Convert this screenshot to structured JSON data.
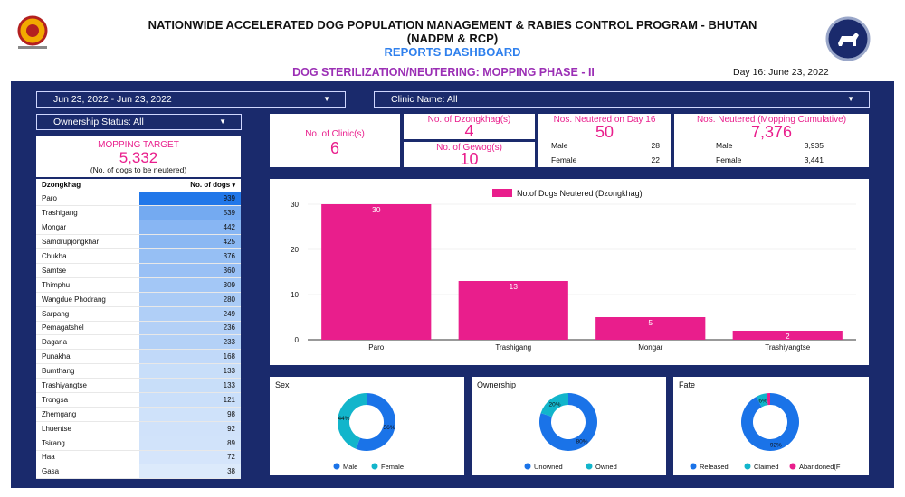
{
  "header": {
    "title_line1": "NATIONWIDE ACCELERATED DOG POPULATION MANAGEMENT & RABIES CONTROL PROGRAM - BHUTAN",
    "title_line2": "(NADPM & RCP)",
    "title_line3": "REPORTS DASHBOARD",
    "subtitle": "DOG STERILIZATION/NEUTERING: MOPPING PHASE - II",
    "day": "Day 16: June 23, 2022"
  },
  "filters": {
    "date_range": "Jun 23, 2022 - Jun 23, 2022",
    "clinic": "Clinic Name: All",
    "ownership": "Ownership Status: All"
  },
  "target": {
    "label": "MOPPING TARGET",
    "value": "5,332",
    "note": "(No. of dogs to be neutered)"
  },
  "kpis": {
    "clinics_label": "No. of Clinic(s)",
    "clinics_value": "6",
    "dzongkhag_label": "No. of Dzongkhag(s)",
    "dzongkhag_value": "4",
    "gewog_label": "No. of Gewog(s)",
    "gewog_value": "10",
    "day_label": "Nos. Neutered on Day 16",
    "day_value": "50",
    "day_male_label": "Male",
    "day_male": "28",
    "day_female_label": "Female",
    "day_female": "22",
    "cum_label": "Nos. Neutered (Mopping Cumulative)",
    "cum_value": "7,376",
    "cum_male_label": "Male",
    "cum_male": "3,935",
    "cum_female_label": "Female",
    "cum_female": "3,441"
  },
  "table": {
    "col1": "Dzongkhag",
    "col2": "No. of dogs",
    "sort_icon": "sort-desc-icon",
    "max": 939,
    "rows": [
      {
        "name": "Paro",
        "value": 939
      },
      {
        "name": "Trashigang",
        "value": 539
      },
      {
        "name": "Mongar",
        "value": 442
      },
      {
        "name": "Samdrupjongkhar",
        "value": 425
      },
      {
        "name": "Chukha",
        "value": 376
      },
      {
        "name": "Samtse",
        "value": 360
      },
      {
        "name": "Thimphu",
        "value": 309
      },
      {
        "name": "Wangdue Phodrang",
        "value": 280
      },
      {
        "name": "Sarpang",
        "value": 249
      },
      {
        "name": "Pemagatshel",
        "value": 236
      },
      {
        "name": "Dagana",
        "value": 233
      },
      {
        "name": "Punakha",
        "value": 168
      },
      {
        "name": "Bumthang",
        "value": 133
      },
      {
        "name": "Trashiyangtse",
        "value": 133
      },
      {
        "name": "Trongsa",
        "value": 121
      },
      {
        "name": "Zhemgang",
        "value": 98
      },
      {
        "name": "Lhuentse",
        "value": 92
      },
      {
        "name": "Tsirang",
        "value": 89
      },
      {
        "name": "Haa",
        "value": 72
      },
      {
        "name": "Gasa",
        "value": 38
      }
    ]
  },
  "colors": {
    "accent": "#e91e8c",
    "navy": "#1a2a6c",
    "blue": "#1a73e8",
    "teal": "#12b5cb"
  },
  "chart_data": [
    {
      "type": "bar",
      "legend": "No.of Dogs Neutered (Dzongkhag)",
      "categories": [
        "Paro",
        "Trashigang",
        "Mongar",
        "Trashiyangtse"
      ],
      "series": [
        {
          "name": "No.of Dogs Neutered (Dzongkhag)",
          "values": [
            30,
            13,
            5,
            2
          ]
        }
      ],
      "yticks": [
        0,
        10,
        20,
        30
      ],
      "ylim": [
        0,
        30
      ],
      "color": "#e91e8c"
    },
    {
      "type": "pie",
      "title": "Sex",
      "labels": [
        "Male",
        "Female"
      ],
      "values": [
        56,
        44
      ],
      "value_labels": [
        "56%",
        "44%"
      ],
      "colors": [
        "#1a73e8",
        "#12b5cb"
      ]
    },
    {
      "type": "pie",
      "title": "Ownership",
      "labels": [
        "Unowned",
        "Owned"
      ],
      "values": [
        80,
        20
      ],
      "value_labels": [
        "80%",
        "20%"
      ],
      "colors": [
        "#1a73e8",
        "#12b5cb"
      ]
    },
    {
      "type": "pie",
      "title": "Fate",
      "labels": [
        "Released",
        "Claimed",
        "Abandoned(F"
      ],
      "values": [
        92,
        6,
        2
      ],
      "value_labels": [
        "92%",
        "6%",
        ""
      ],
      "colors": [
        "#1a73e8",
        "#12b5cb",
        "#e91e8c"
      ]
    }
  ]
}
